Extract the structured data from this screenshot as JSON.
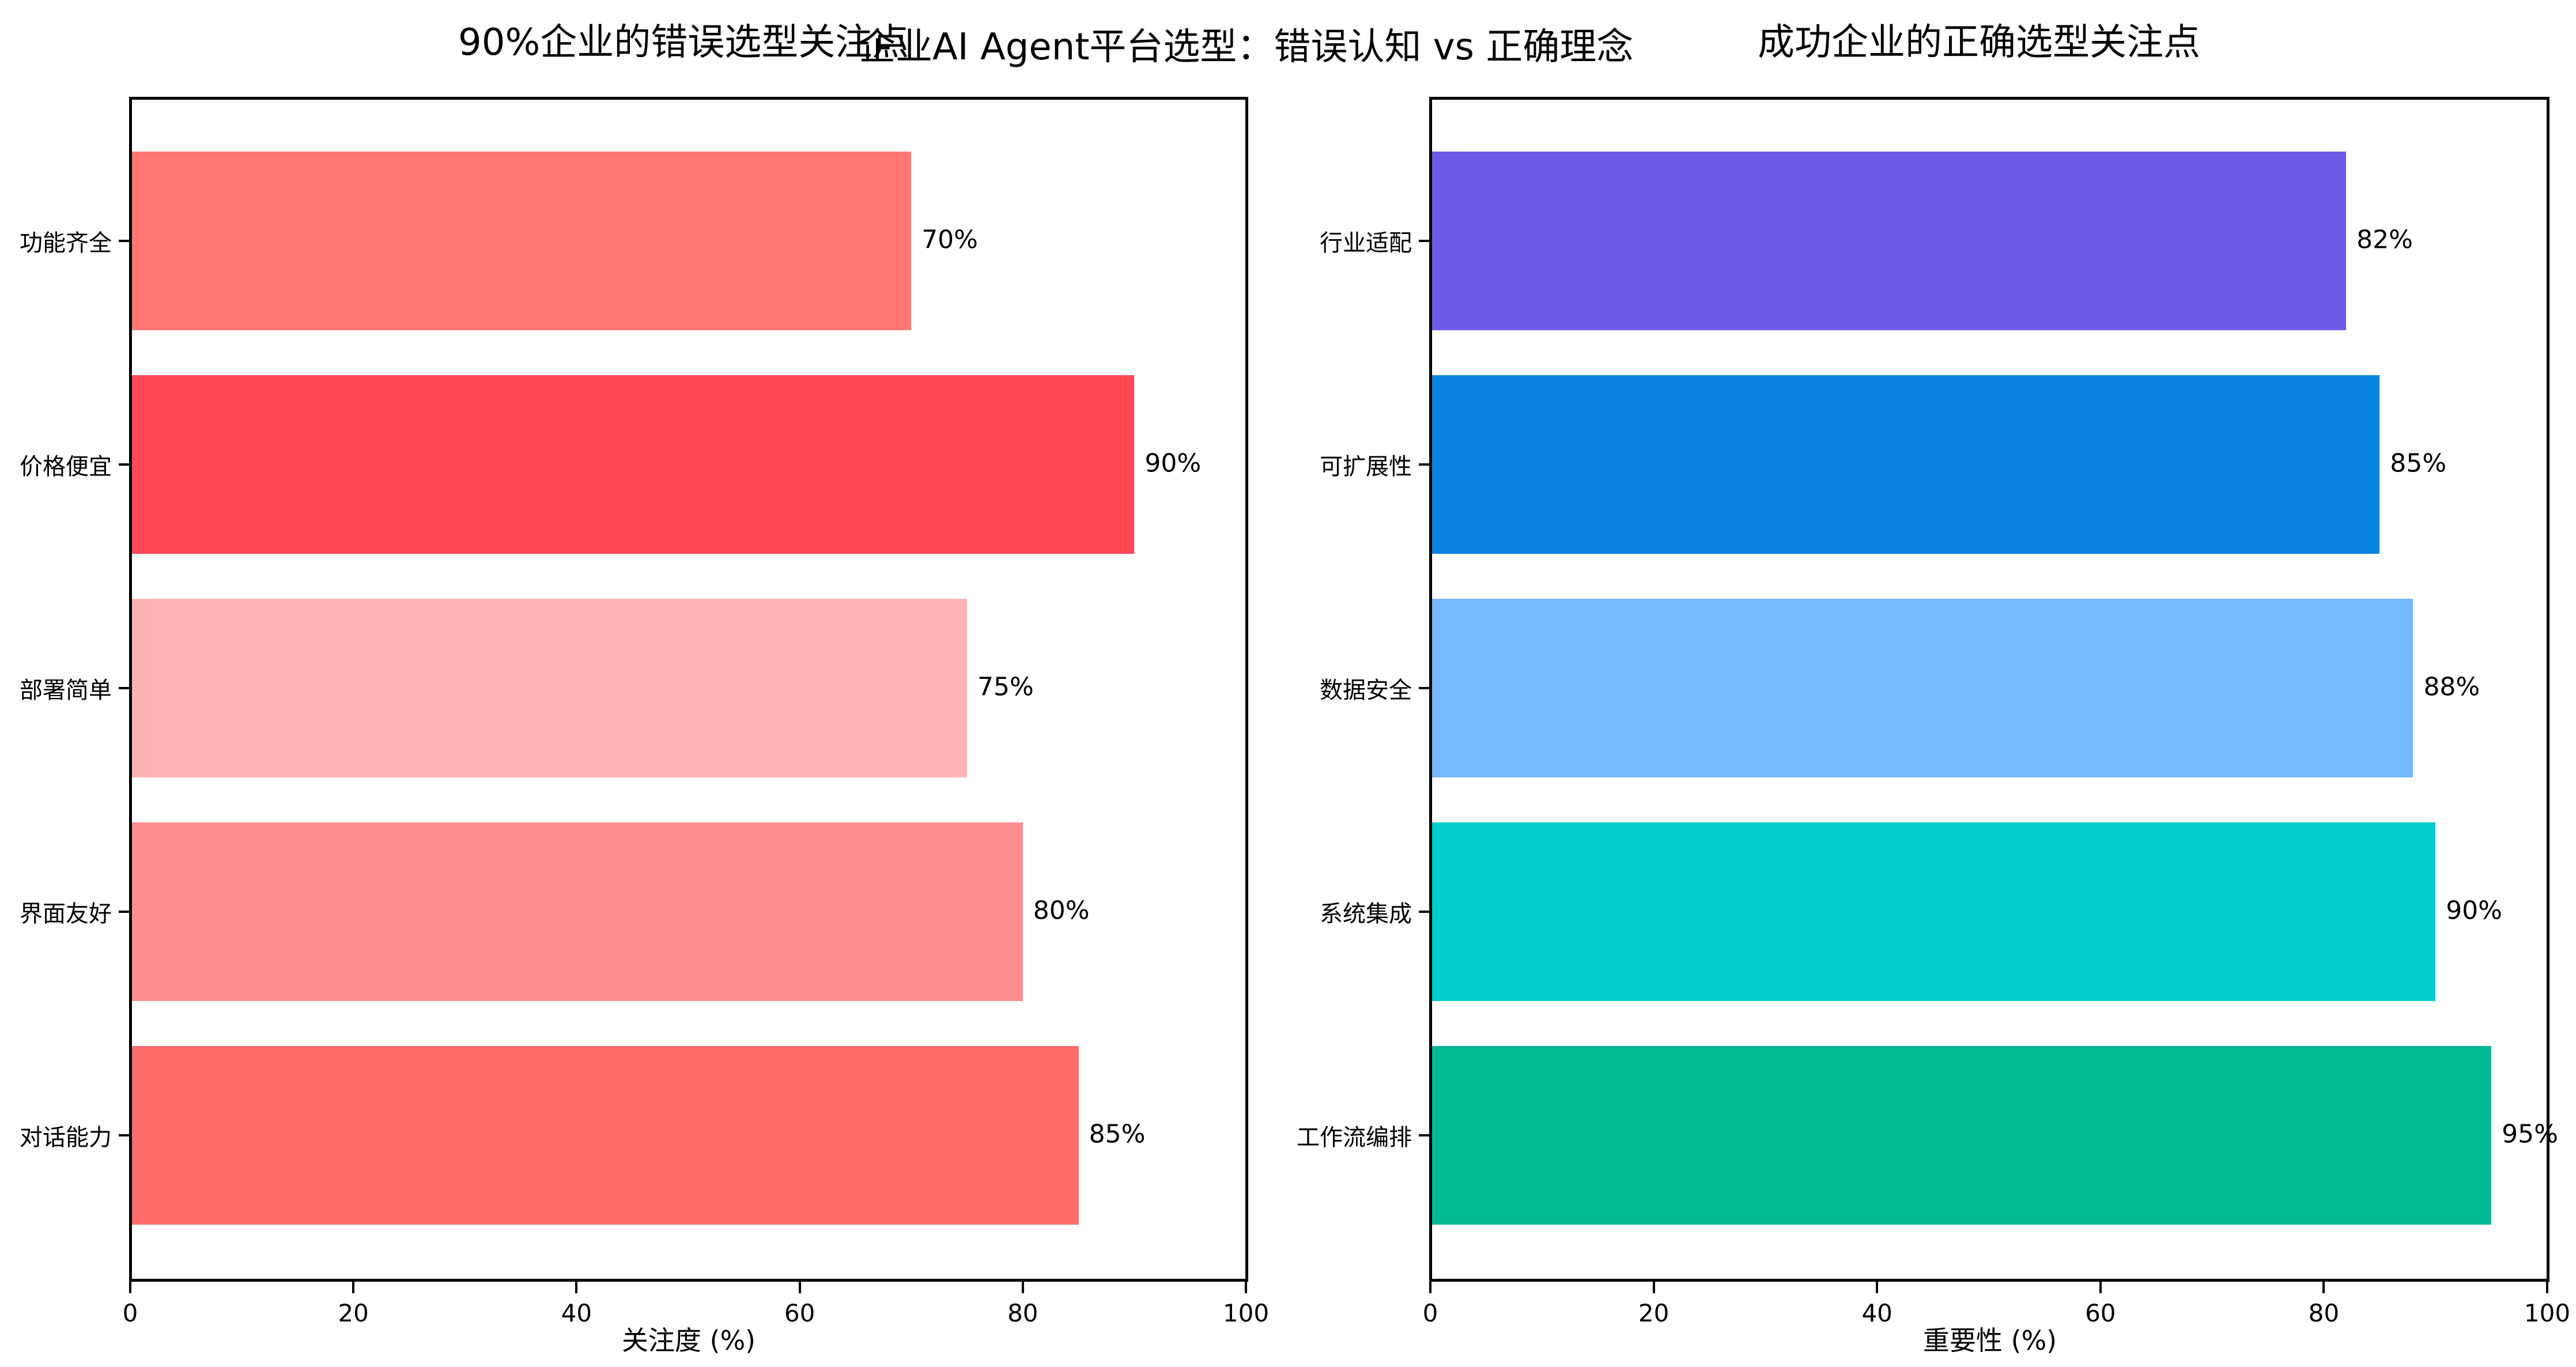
{
  "figure": {
    "suptitle": "企业AI Agent平台选型：错误认知 vs 正确理念"
  },
  "left": {
    "title": "90%企业的错误选型关注点",
    "xlabel": "关注度 (%)",
    "xticks": [
      "0",
      "20",
      "40",
      "60",
      "80",
      "100"
    ],
    "bars": [
      {
        "label": "功能齐全",
        "value": 70,
        "text": "70%",
        "color": "#FF7675"
      },
      {
        "label": "价格便宜",
        "value": 90,
        "text": "90%",
        "color": "#FF4757"
      },
      {
        "label": "部署简单",
        "value": 75,
        "text": "75%",
        "color": "#FFB3B3"
      },
      {
        "label": "界面友好",
        "value": 80,
        "text": "80%",
        "color": "#FF8E8E"
      },
      {
        "label": "对话能力",
        "value": 85,
        "text": "85%",
        "color": "#FF6B6B"
      }
    ]
  },
  "right": {
    "title": "成功企业的正确选型关注点",
    "xlabel": "重要性 (%)",
    "xticks": [
      "0",
      "20",
      "40",
      "60",
      "80",
      "100"
    ],
    "bars": [
      {
        "label": "行业适配",
        "value": 82,
        "text": "82%",
        "color": "#6C5CE7"
      },
      {
        "label": "可扩展性",
        "value": 85,
        "text": "85%",
        "color": "#0984E3"
      },
      {
        "label": "数据安全",
        "value": 88,
        "text": "88%",
        "color": "#74B9FF"
      },
      {
        "label": "系统集成",
        "value": 90,
        "text": "90%",
        "color": "#00CEC9"
      },
      {
        "label": "工作流编排",
        "value": 95,
        "text": "95%",
        "color": "#00B894"
      }
    ]
  },
  "chart_data": [
    {
      "type": "bar",
      "orientation": "horizontal",
      "title": "90%企业的错误选型关注点",
      "categories": [
        "功能齐全",
        "价格便宜",
        "部署简单",
        "界面友好",
        "对话能力"
      ],
      "values": [
        70,
        90,
        75,
        80,
        85
      ],
      "xlabel": "关注度 (%)",
      "ylabel": "",
      "xlim": [
        0,
        100
      ],
      "xticks": [
        0,
        20,
        40,
        60,
        80,
        100
      ],
      "value_labels": [
        "70%",
        "90%",
        "75%",
        "80%",
        "85%"
      ],
      "colors": [
        "#FF7675",
        "#FF4757",
        "#FFB3B3",
        "#FF8E8E",
        "#FF6B6B"
      ],
      "grid": false
    },
    {
      "type": "bar",
      "orientation": "horizontal",
      "title": "成功企业的正确选型关注点",
      "categories": [
        "行业适配",
        "可扩展性",
        "数据安全",
        "系统集成",
        "工作流编排"
      ],
      "values": [
        82,
        85,
        88,
        90,
        95
      ],
      "xlabel": "重要性 (%)",
      "ylabel": "",
      "xlim": [
        0,
        100
      ],
      "xticks": [
        0,
        20,
        40,
        60,
        80,
        100
      ],
      "value_labels": [
        "82%",
        "85%",
        "88%",
        "90%",
        "95%"
      ],
      "colors": [
        "#6C5CE7",
        "#0984E3",
        "#74B9FF",
        "#00CEC9",
        "#00B894"
      ],
      "grid": false
    }
  ]
}
